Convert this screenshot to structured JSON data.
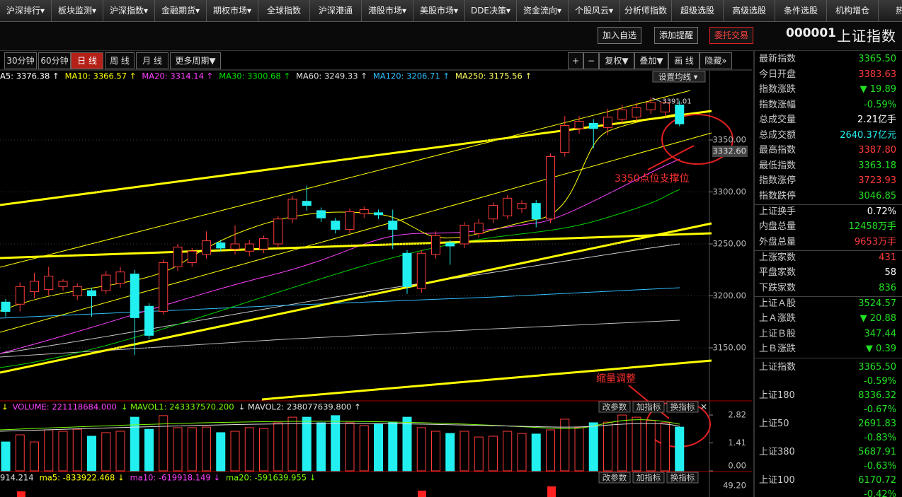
{
  "menu": [
    "沪深排行▾",
    "板块监测▾",
    "沪深指数▾",
    "金融期货▾",
    "期权市场▾",
    "全球指数",
    "沪深港通",
    "港股市场▾",
    "美股市场▾",
    "DDE决策▾",
    "资金流向▾",
    "个股风云▾",
    "分析师指数",
    "超级选股",
    "高级选股",
    "条件选股",
    "机构增仓",
    "热点"
  ],
  "header": {
    "buttons": [
      "加入自选",
      "添加提醒",
      "委托交易"
    ],
    "code": "000001",
    "name": "上证指数"
  },
  "periods": [
    "30分钟",
    "60分钟",
    "日 线",
    "周 线",
    "月 线",
    "更多周期▼"
  ],
  "tools": [
    "+",
    "−",
    "复权▼",
    "叠加▼",
    "画 线",
    "隐藏»"
  ],
  "ma_legend": [
    {
      "text": "A5: 3376.38 ↑",
      "color": "#ffffff"
    },
    {
      "text": "MA10: 3366.57 ↑",
      "color": "#ffff00"
    },
    {
      "text": "MA20: 3314.14 ↑",
      "color": "#ff40ff"
    },
    {
      "text": "MA30: 3300.68 ↑",
      "color": "#00e000"
    },
    {
      "text": "MA60: 3249.33 ↑",
      "color": "#e0e0e0"
    },
    {
      "text": "MA120: 3206.71 ↑",
      "color": "#30c0ff"
    },
    {
      "text": "MA250: 3175.56 ↑",
      "color": "#ffff60"
    }
  ],
  "ma_settings": "设置均线 ▾",
  "kline": {
    "ylim": [
      3100,
      3405
    ],
    "yticks": [
      {
        "value": 3150,
        "label": "3150.00"
      },
      {
        "value": 3200,
        "label": "3200.00"
      },
      {
        "value": 3250,
        "label": "3250.00"
      },
      {
        "value": 3300,
        "label": "3300.00"
      },
      {
        "value": 3350,
        "label": "3350.00"
      }
    ],
    "up_color": "#ff3b3b",
    "down_color": "#22f0f0",
    "open": [
      3194,
      3192,
      3204,
      3206,
      3209,
      3200,
      3205,
      3205,
      3212,
      3221,
      3190,
      3185,
      3228,
      3232,
      3240,
      3251,
      3245,
      3243,
      3245,
      3250,
      3274,
      3291,
      3282,
      3272,
      3264,
      3279,
      3280,
      3272,
      3241,
      3207,
      3240,
      3251,
      3250,
      3260,
      3274,
      3277,
      3284,
      3289,
      3274,
      3338,
      3361,
      3366,
      3362,
      3370,
      3372,
      3379,
      3377,
      3383.63
    ],
    "high": [
      3197,
      3213,
      3222,
      3228,
      3216,
      3212,
      3208,
      3224,
      3228,
      3225,
      3193,
      3235,
      3250,
      3246,
      3262,
      3254,
      3268,
      3254,
      3258,
      3277,
      3296,
      3306,
      3285,
      3275,
      3284,
      3286,
      3283,
      3283,
      3244,
      3244,
      3262,
      3254,
      3271,
      3274,
      3290,
      3297,
      3292,
      3292,
      3337,
      3373,
      3373,
      3370,
      3380,
      3384,
      3386,
      3391.01,
      3390,
      3387.8
    ],
    "low": [
      3180,
      3185,
      3198,
      3200,
      3205,
      3196,
      3180,
      3202,
      3208,
      3143,
      3158,
      3182,
      3224,
      3228,
      3236,
      3243,
      3240,
      3238,
      3241,
      3246,
      3270,
      3282,
      3271,
      3260,
      3260,
      3275,
      3274,
      3245,
      3202,
      3203,
      3236,
      3230,
      3246,
      3256,
      3270,
      3274,
      3280,
      3266,
      3270,
      3334,
      3356,
      3342,
      3355,
      3366,
      3368,
      3375,
      3372,
      3363.18
    ],
    "close": [
      3185,
      3209,
      3214,
      3219,
      3214,
      3209,
      3200,
      3220,
      3223,
      3179,
      3162,
      3232,
      3247,
      3243,
      3253,
      3246,
      3250,
      3250,
      3255,
      3274,
      3293,
      3287,
      3275,
      3264,
      3281,
      3283,
      3278,
      3264,
      3209,
      3241,
      3258,
      3248,
      3268,
      3270,
      3287,
      3294,
      3289,
      3274,
      3334,
      3364,
      3368,
      3361,
      3372,
      3379,
      3381,
      3386,
      3386,
      3365.5
    ],
    "high_label": "3391.01",
    "cursor_price": "3332.60",
    "annotations": [
      "3350点位支撑位",
      "缩量调整"
    ]
  },
  "volume": {
    "legend": [
      {
        "text": "↓",
        "color": "#ffff00"
      },
      {
        "text": "VOLUME: 221118684.000",
        "color": "#ff40ff"
      },
      {
        "text": "↓ MAVOL1: 243337570.200",
        "color": "#7cfc00"
      },
      {
        "text": "↓ MAVOL2: 238077639.800 ↑",
        "color": "#e0e0e0"
      }
    ],
    "buttons": [
      "改参数",
      "加指标",
      "换指标"
    ],
    "ylim": [
      0,
      3.1
    ],
    "yticks": [
      {
        "value": 0,
        "label": "0.00"
      },
      1.41,
      2.82
    ],
    "values": [
      1.46,
      1.82,
      1.46,
      2.07,
      2.0,
      2.1,
      1.75,
      1.93,
      2.0,
      2.71,
      2.1,
      2.79,
      2.18,
      2.18,
      2.21,
      1.93,
      2.0,
      2.18,
      2.14,
      2.43,
      2.71,
      2.71,
      2.43,
      2.79,
      2.43,
      2.29,
      2.36,
      2.46,
      2.71,
      2.18,
      2.0,
      1.89,
      2.0,
      1.71,
      1.75,
      2.0,
      1.89,
      1.86,
      2.07,
      2.61,
      2.18,
      2.43,
      2.46,
      2.82,
      2.71,
      2.54,
      2.43,
      2.21
    ]
  },
  "indicator": {
    "legend": [
      {
        "text": "914.214",
        "color": "#e0e0e0"
      },
      {
        "text": "ma5: -833922.468 ↓",
        "color": "#ffff00"
      },
      {
        "text": "ma10: -619918.149 ↓",
        "color": "#ff40ff"
      },
      {
        "text": "ma20: -591639.955 ↓",
        "color": "#7cfc00"
      }
    ],
    "buttons": [
      "改参数",
      "加指标",
      "换指标"
    ],
    "axis_label": "49.20"
  },
  "quote": {
    "groups": [
      [
        {
          "label": "最新指数",
          "value": "3365.50",
          "color": "#22e022"
        },
        {
          "label": "今日开盘",
          "value": "3383.63",
          "color": "#ff3b3b"
        },
        {
          "label": "指数涨跌",
          "value": "▼ 19.89",
          "color": "#22e022"
        },
        {
          "label": "指数涨幅",
          "value": "-0.59%",
          "color": "#22e022"
        },
        {
          "label": "总成交量",
          "value": "2.21亿手",
          "color": "#ffffff"
        },
        {
          "label": "总成交额",
          "value": "2640.37亿元",
          "color": "#22f0f0"
        },
        {
          "label": "最高指数",
          "value": "3387.80",
          "color": "#ff3b3b"
        },
        {
          "label": "最低指数",
          "value": "3363.18",
          "color": "#22e022"
        },
        {
          "label": "指数涨停",
          "value": "3723.93",
          "color": "#ff3b3b"
        },
        {
          "label": "指数跌停",
          "value": "3046.85",
          "color": "#22e022"
        }
      ],
      [
        {
          "label": "上证换手",
          "value": "0.72%",
          "color": "#ffffff"
        },
        {
          "label": "内盘总量",
          "value": "12458万手",
          "color": "#22e022"
        },
        {
          "label": "外盘总量",
          "value": "9653万手",
          "color": "#ff3b3b"
        }
      ],
      [
        {
          "label": "上涨家数",
          "value": "431",
          "color": "#ff3b3b"
        },
        {
          "label": "平盘家数",
          "value": "58",
          "color": "#ffffff"
        },
        {
          "label": "下跌家数",
          "value": "836",
          "color": "#22e022"
        }
      ],
      [
        {
          "label": "上证Ａ股",
          "value": "3524.57",
          "color": "#22e022"
        },
        {
          "label": "上Ａ涨跌",
          "value": "▼ 20.88",
          "color": "#22e022"
        },
        {
          "label": "上证Ｂ股",
          "value": "347.44",
          "color": "#22e022"
        },
        {
          "label": "上Ｂ涨跌",
          "value": "▼ 0.39",
          "color": "#22e022"
        }
      ]
    ],
    "indices": [
      {
        "name": "上证指数",
        "value": "3365.50",
        "change": "-0.59%",
        "color": "#22e022"
      },
      {
        "name": "上证180",
        "value": "8336.32",
        "change": "-0.67%",
        "color": "#22e022"
      },
      {
        "name": "上证50",
        "value": "2691.83",
        "change": "-0.83%",
        "color": "#22e022"
      },
      {
        "name": "上证380",
        "value": "5687.91",
        "change": "-0.63%",
        "color": "#22e022"
      },
      {
        "name": "上证100",
        "value": "6170.72",
        "change": "-0.42%",
        "color": "#22e022"
      }
    ]
  }
}
